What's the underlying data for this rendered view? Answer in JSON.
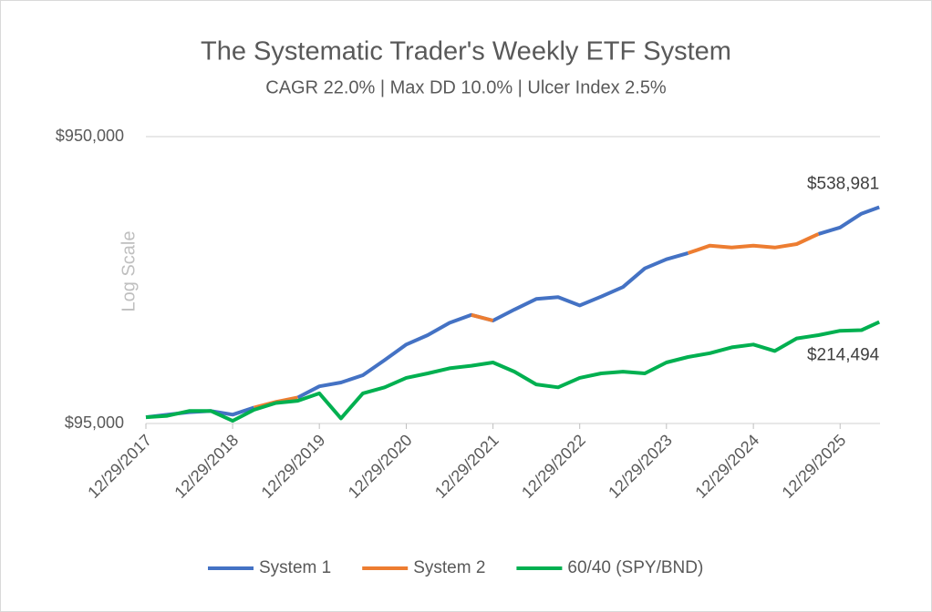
{
  "chart_data": {
    "type": "line",
    "title": "The Systematic Trader's Weekly ETF System",
    "subtitle": "CAGR 22.0% | Max DD 10.0% | Ulcer Index 2.5%",
    "y_label": "Log Scale",
    "log_scale": true,
    "grid": true,
    "legend": "bottom",
    "x": [
      "2017-12-29",
      "2018-03-29",
      "2018-06-29",
      "2018-09-29",
      "2018-12-29",
      "2019-03-29",
      "2019-06-29",
      "2019-09-29",
      "2019-12-29",
      "2020-03-29",
      "2020-06-29",
      "2020-09-29",
      "2020-12-29",
      "2021-03-29",
      "2021-06-29",
      "2021-09-29",
      "2021-12-29",
      "2022-03-29",
      "2022-06-29",
      "2022-09-29",
      "2022-12-29",
      "2023-03-29",
      "2023-06-29",
      "2023-09-29",
      "2023-12-29",
      "2024-03-29",
      "2024-06-29",
      "2024-09-29",
      "2024-12-29",
      "2025-03-29",
      "2025-06-29",
      "2025-09-29",
      "2025-12-29",
      "2026-03-29",
      "2026-06-12"
    ],
    "series": [
      {
        "name": "System 1",
        "color": "#4472c4",
        "values": [
          99900,
          102000,
          104000,
          105000,
          102000,
          108000,
          null,
          117000,
          128000,
          132000,
          140000,
          158000,
          179000,
          193000,
          213000,
          227000,
          217000,
          237000,
          258000,
          262000,
          245000,
          263000,
          284000,
          330000,
          355000,
          373000,
          null,
          null,
          null,
          null,
          null,
          435000,
          458000,
          512000,
          538981
        ]
      },
      {
        "name": "System 2",
        "color": "#ed7d31",
        "values": [
          null,
          null,
          null,
          null,
          null,
          108000,
          113000,
          117000,
          null,
          null,
          null,
          null,
          null,
          null,
          null,
          227000,
          217000,
          null,
          null,
          null,
          null,
          null,
          null,
          null,
          null,
          373000,
          396000,
          390000,
          396000,
          390000,
          401000,
          435000,
          null,
          null,
          null
        ]
      },
      {
        "name": "60/40 (SPY/BND)",
        "color": "#00b050",
        "values": [
          99900,
          101000,
          105000,
          105000,
          97000,
          106000,
          112000,
          114000,
          121000,
          99000,
          121000,
          127000,
          137000,
          142000,
          148000,
          151000,
          155000,
          144000,
          130000,
          127000,
          137000,
          142000,
          144000,
          142000,
          155000,
          162000,
          167000,
          175000,
          179000,
          170000,
          188000,
          193000,
          200000,
          201000,
          214494
        ]
      }
    ],
    "annotations": [
      {
        "label": "$538,981",
        "x": "2026-06-12",
        "y": 538981
      },
      {
        "label": "$214,494",
        "x": "2026-06-12",
        "y": 214494
      }
    ],
    "xlim": [
      "2017-12-29",
      "2026-06-15"
    ],
    "xticks": [
      {
        "value": "2017-12-29",
        "label": "12/29/2017"
      },
      {
        "value": "2018-12-29",
        "label": "12/29/2018"
      },
      {
        "value": "2019-12-29",
        "label": "12/29/2019"
      },
      {
        "value": "2020-12-29",
        "label": "12/29/2020"
      },
      {
        "value": "2021-12-29",
        "label": "12/29/2021"
      },
      {
        "value": "2022-12-29",
        "label": "12/29/2022"
      },
      {
        "value": "2023-12-29",
        "label": "12/29/2023"
      },
      {
        "value": "2024-12-29",
        "label": "12/29/2024"
      },
      {
        "value": "2025-12-29",
        "label": "12/29/2025"
      }
    ],
    "ylim": [
      95000,
      950000
    ],
    "yticks": [
      {
        "value": 95000,
        "label": "$95,000"
      },
      {
        "value": 950000,
        "label": "$950,000"
      }
    ]
  }
}
